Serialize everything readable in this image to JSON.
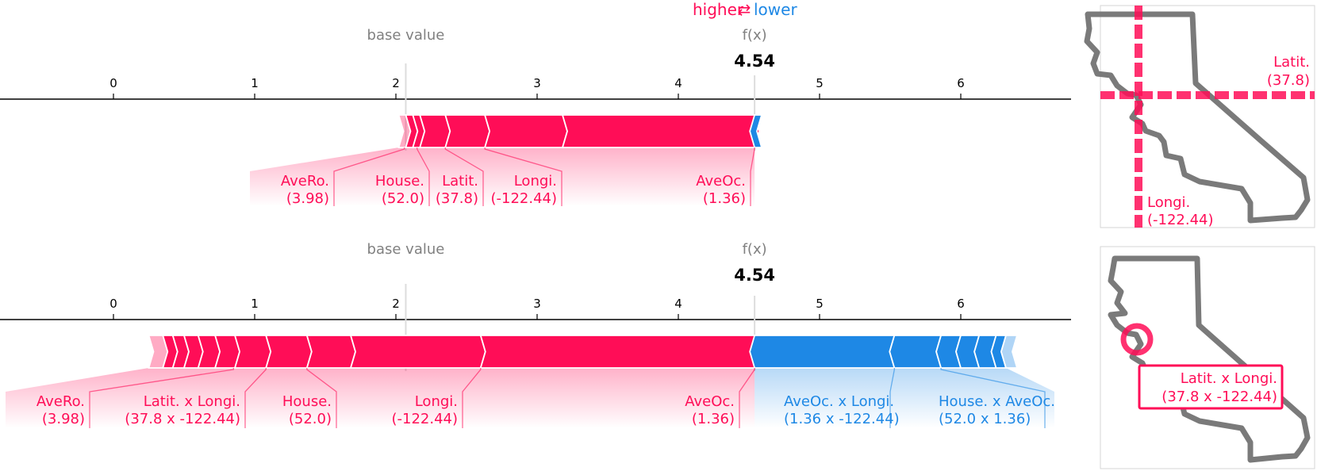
{
  "legend": {
    "higher": "higher",
    "arrow": "⇄",
    "lower": "lower"
  },
  "colors": {
    "positive": "#ff0d57",
    "negative": "#1e88e5",
    "axis": "#000000",
    "meta": "#808080",
    "map_outline": "#7a7a7a"
  },
  "chart_data": [
    {
      "type": "force",
      "axis_ticks": [
        0,
        1,
        2,
        3,
        4,
        5,
        6
      ],
      "base_value_label": "base value",
      "base_value": 2.07,
      "fx_label": "f(x)",
      "fx_value": 4.54,
      "fx_text": "4.54",
      "positive_start": 2.02,
      "boundaries_positive": [
        2.07,
        2.12,
        2.17,
        2.35,
        2.63,
        3.18,
        4.54
      ],
      "boundaries_negative": [
        4.54,
        4.59
      ],
      "labels": [
        {
          "name": "AveRo.",
          "value": "(3.98)",
          "sign": "pos",
          "seg_x": 2.06
        },
        {
          "name": "House.",
          "value": "(52.0)",
          "sign": "pos",
          "seg_x": 2.15
        },
        {
          "name": "Latit.",
          "value": "(37.8)",
          "sign": "pos",
          "seg_x": 2.35
        },
        {
          "name": "Longi.",
          "value": "(-122.44)",
          "sign": "pos",
          "seg_x": 2.63
        },
        {
          "name": "AveOc.",
          "value": "(1.36)",
          "sign": "pos",
          "seg_x": 4.54
        }
      ]
    },
    {
      "type": "force",
      "axis_ticks": [
        0,
        1,
        2,
        3,
        4,
        5,
        6
      ],
      "base_value_label": "base value",
      "base_value": 2.07,
      "fx_label": "f(x)",
      "fx_value": 4.54,
      "fx_text": "4.54",
      "positive_start": 0.25,
      "boundaries_positive": [
        0.35,
        0.42,
        0.5,
        0.6,
        0.72,
        0.86,
        1.08,
        1.37,
        1.68,
        2.6,
        4.54
      ],
      "boundaries_negative": [
        4.54,
        5.53,
        5.86,
        6.0,
        6.13,
        6.25,
        6.32
      ],
      "labels": [
        {
          "name": "AveRo.",
          "value": "(3.98)",
          "sign": "pos",
          "seg_x": 0.85
        },
        {
          "name": "Latit. x Longi.",
          "value": "(37.8 x -122.44)",
          "sign": "pos",
          "seg_x": 1.08
        },
        {
          "name": "House.",
          "value": "(52.0)",
          "sign": "pos",
          "seg_x": 1.37
        },
        {
          "name": "Longi.",
          "value": "(-122.44)",
          "sign": "pos",
          "seg_x": 2.6
        },
        {
          "name": "AveOc.",
          "value": "(1.36)",
          "sign": "pos",
          "seg_x": 4.54
        },
        {
          "name": "AveOc. x Longi.",
          "value": "(1.36 x -122.44)",
          "sign": "neg",
          "seg_x": 5.53
        },
        {
          "name": "House. x AveOc.",
          "value": "(52.0 x 1.36)",
          "sign": "neg",
          "seg_x": 5.86
        }
      ]
    }
  ],
  "maps": [
    {
      "label_a_name": "Latit.",
      "label_a_value": "(37.8)",
      "label_b_name": "Longi.",
      "label_b_value": "(-122.44)"
    },
    {
      "label_name": "Latit. x Longi.",
      "label_value": "(37.8 x -122.44)"
    }
  ]
}
